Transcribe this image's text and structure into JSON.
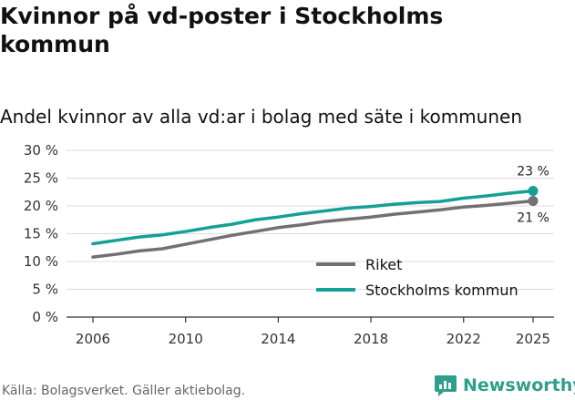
{
  "header": {
    "title": "Kvinnor på vd-poster i Stockholms kommun",
    "subtitle": "Andel kvinnor av alla vd:ar i bolag med säte i kommunen"
  },
  "footer": {
    "source": "Källa: Bolagsverket. Gäller aktiebolag.",
    "brand": "Newsworthy"
  },
  "colors": {
    "riket": "#727075",
    "stockholm": "#14a096",
    "grid": "#dcdcdc",
    "brand": "#2e9f8e"
  },
  "chart_data": {
    "type": "line",
    "title": "Kvinnor på vd-poster i Stockholms kommun",
    "subtitle": "Andel kvinnor av alla vd:ar i bolag med säte i kommunen",
    "xlabel": "",
    "ylabel": "",
    "x": [
      2006,
      2007,
      2008,
      2009,
      2010,
      2011,
      2012,
      2013,
      2014,
      2015,
      2016,
      2017,
      2018,
      2019,
      2020,
      2021,
      2022,
      2023,
      2024,
      2025
    ],
    "xlim": [
      2006,
      2025
    ],
    "xticks": [
      2006,
      2010,
      2014,
      2018,
      2022,
      2025
    ],
    "xtick_labels": [
      "2006",
      "2010",
      "2014",
      "2018",
      "2022",
      "2025"
    ],
    "ylim": [
      0,
      30
    ],
    "yticks": [
      0,
      5,
      10,
      15,
      20,
      25,
      30
    ],
    "ytick_labels": [
      "0 %",
      "5 %",
      "10 %",
      "15 %",
      "20 %",
      "25 %",
      "30 %"
    ],
    "grid": true,
    "legend_position": "bottom-right",
    "series": [
      {
        "name": "Riket",
        "key": "riket",
        "values": [
          10.8,
          11.3,
          11.9,
          12.3,
          13.1,
          13.9,
          14.7,
          15.4,
          16.1,
          16.6,
          17.2,
          17.6,
          18.0,
          18.5,
          18.9,
          19.3,
          19.8,
          20.1,
          20.5,
          20.9
        ],
        "end_label": "21 %"
      },
      {
        "name": "Stockholms kommun",
        "key": "stockholm",
        "values": [
          13.2,
          13.8,
          14.4,
          14.8,
          15.4,
          16.1,
          16.7,
          17.5,
          18.0,
          18.6,
          19.1,
          19.6,
          19.9,
          20.3,
          20.6,
          20.8,
          21.4,
          21.8,
          22.3,
          22.7
        ],
        "end_label": "23 %"
      }
    ]
  }
}
